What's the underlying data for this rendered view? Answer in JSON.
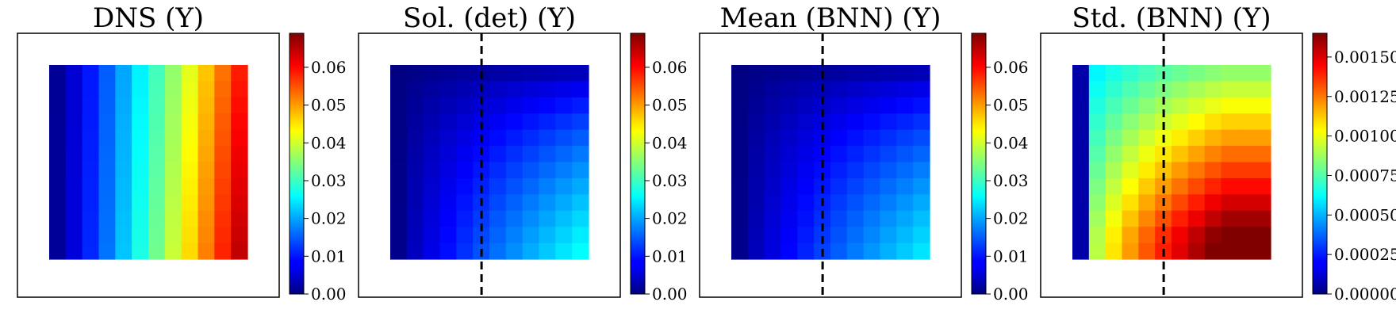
{
  "chart_data": [
    {
      "type": "heatmap",
      "title": "DNS (Y)",
      "grid": {
        "rows": 12,
        "cols": 12
      },
      "colormap": "jet",
      "colorbar": {
        "range": [
          0,
          0.069
        ],
        "ticks": [
          "0.00",
          "0.01",
          "0.02",
          "0.03",
          "0.04",
          "0.05",
          "0.06"
        ],
        "tick_values": [
          0,
          0.01,
          0.02,
          0.03,
          0.04,
          0.05,
          0.06
        ]
      },
      "dashed_line": false,
      "field": {
        "kind": "x_gradient",
        "max": 0.068
      }
    },
    {
      "type": "heatmap",
      "title": "Sol. (det) (Y)",
      "grid": {
        "rows": 12,
        "cols": 12
      },
      "colormap": "jet",
      "colorbar": {
        "range": [
          0,
          0.069
        ],
        "ticks": [
          "0.00",
          "0.01",
          "0.02",
          "0.03",
          "0.04",
          "0.05",
          "0.06"
        ],
        "tick_values": [
          0,
          0.01,
          0.02,
          0.03,
          0.04,
          0.05,
          0.06
        ]
      },
      "dashed_line": true,
      "field": {
        "kind": "corner_gradient",
        "max": 0.027
      }
    },
    {
      "type": "heatmap",
      "title": "Mean (BNN) (Y)",
      "grid": {
        "rows": 12,
        "cols": 12
      },
      "colormap": "jet",
      "colorbar": {
        "range": [
          0,
          0.069
        ],
        "ticks": [
          "0.00",
          "0.01",
          "0.02",
          "0.03",
          "0.04",
          "0.05",
          "0.06"
        ],
        "tick_values": [
          0,
          0.01,
          0.02,
          0.03,
          0.04,
          0.05,
          0.06
        ]
      },
      "dashed_line": true,
      "field": {
        "kind": "corner_gradient",
        "max": 0.025
      }
    },
    {
      "type": "heatmap",
      "title": "Std. (BNN) (Y)",
      "grid": {
        "rows": 12,
        "cols": 12
      },
      "colormap": "jet",
      "colorbar": {
        "range": [
          0,
          0.00165
        ],
        "ticks": [
          "0.00000",
          "0.00025",
          "0.00050",
          "0.00075",
          "0.00100",
          "0.00125",
          "0.00150"
        ],
        "tick_values": [
          0,
          0.00025,
          0.0005,
          0.00075,
          0.001,
          0.00125,
          0.0015
        ]
      },
      "dashed_line": true,
      "field": {
        "kind": "std_pattern",
        "max": 0.00165
      }
    }
  ]
}
